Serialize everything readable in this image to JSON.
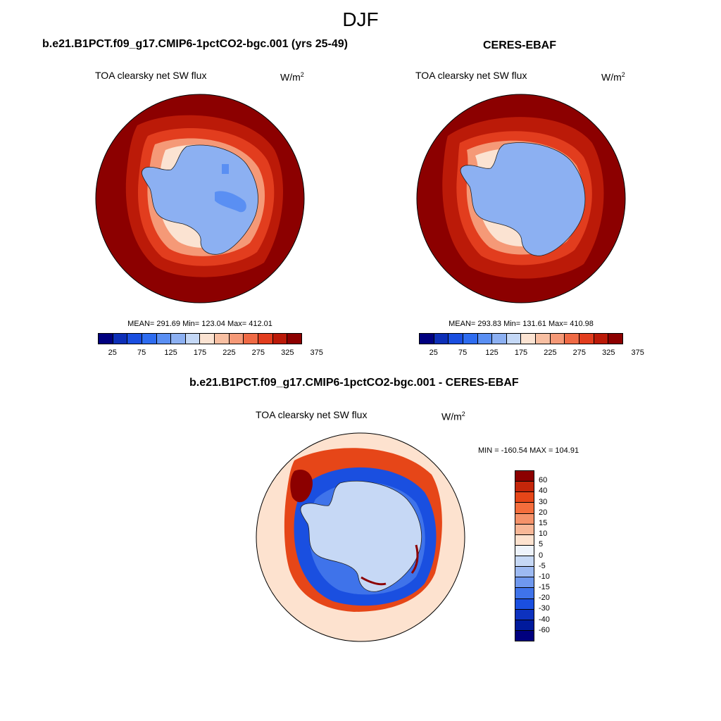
{
  "figure_title": "DJF",
  "panels": {
    "model": {
      "title": "b.e21.B1PCT.f09_g17.CMIP6-1pctCO2-bgc.001 (yrs 25-49)",
      "variable": "TOA clearsky net SW flux",
      "units_base": "W/m",
      "units_exp": "2",
      "stats": "MEAN= 291.69  Min= 123.04  Max= 412.01"
    },
    "obs": {
      "title": "CERES-EBAF",
      "variable": "TOA clearsky net SW flux",
      "units_base": "W/m",
      "units_exp": "2",
      "stats": "MEAN= 293.83  Min= 131.61  Max= 410.98"
    },
    "diff": {
      "title": "b.e21.B1PCT.f09_g17.CMIP6-1pctCO2-bgc.001 - CERES-EBAF",
      "variable": "TOA clearsky net SW flux",
      "units_base": "W/m",
      "units_exp": "2",
      "minmax": "MIN = -160.54 MAX = 104.91"
    }
  },
  "colorbar_main": {
    "colors": [
      "#00007f",
      "#0d2fb7",
      "#1a4ee0",
      "#2e6cf0",
      "#5a8ff3",
      "#8cb0f2",
      "#c4d8f6",
      "#fbe3d2",
      "#f8bfa2",
      "#f59977",
      "#ef6a45",
      "#e23d1e",
      "#bb1a08",
      "#8c0000"
    ],
    "tick_labels": [
      "25",
      "75",
      "125",
      "175",
      "225",
      "275",
      "325",
      "375"
    ]
  },
  "colorbar_diff": {
    "colors": [
      "#8c0000",
      "#c4260a",
      "#e64618",
      "#f46d3c",
      "#f5926a",
      "#f8b797",
      "#fde2cf",
      "#eef3fb",
      "#c6d8f5",
      "#9dbaf2",
      "#6f98ee",
      "#3f73ea",
      "#1a4fe0",
      "#0d32bf",
      "#001a9c",
      "#00007f"
    ],
    "labels": [
      "60",
      "40",
      "30",
      "20",
      "15",
      "10",
      "5",
      "0",
      "-5",
      "-10",
      "-15",
      "-20",
      "-30",
      "-40",
      "-60"
    ]
  },
  "map_colors": {
    "land_ice": "#8cb0f2",
    "land_ice_dark": "#5a8ff3",
    "ocean_outer": "#8c0000",
    "ring_1": "#bb1a08",
    "ring_2": "#e23d1e",
    "ring_3": "#f59977",
    "ring_4": "#fbe3d2",
    "diff_bg": "#fde2cf",
    "diff_blue_dark": "#1a4fe0",
    "diff_blue_mid": "#3f73ea",
    "diff_blue_light": "#c6d8f5",
    "diff_red": "#e64618",
    "diff_red_dark": "#8c0000"
  }
}
